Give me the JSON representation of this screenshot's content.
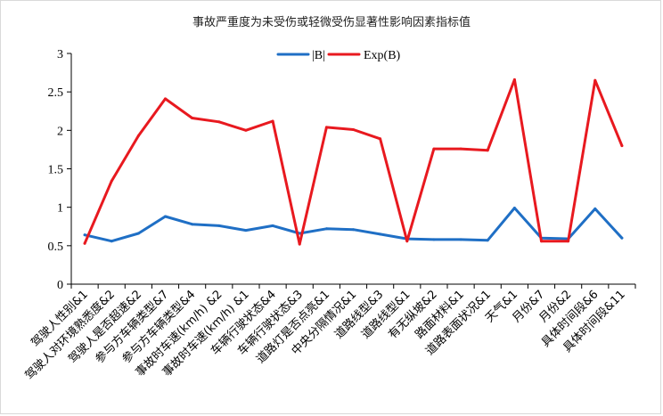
{
  "chart_data": {
    "type": "line",
    "title": "事故严重度为未受伤或轻微受伤显著性影响因素指标值",
    "xlabel": "",
    "ylabel": "",
    "ylim": [
      0,
      3
    ],
    "yticks": [
      "0",
      "0.5",
      "1",
      "1.5",
      "2",
      "2.5",
      "3"
    ],
    "legend_position": "top-center",
    "grid": false,
    "categories": [
      "驾驶人性别&1",
      "驾驶人对环境熟悉度&2",
      "驾驶人是否超速&2",
      "参与方车辆类型&7",
      "参与方车辆类型&4",
      "事故时车速(km/h) &2",
      "事故时车速(km/h) &1",
      "车辆行驶状态&4",
      "车辆行驶状态&3",
      "道路灯是否点亮&1",
      "中央分隔情况&1",
      "道路线型&3",
      "道路线型&1",
      "有无纵坡&2",
      "路面材料&1",
      "道路表面状况&1",
      "天气&1",
      "月份&7",
      "月份&2",
      "具体时间段&6",
      "具体时间段&11"
    ],
    "series": [
      {
        "name": "|B|",
        "color": "#1f6fc5",
        "values": [
          0.64,
          0.56,
          0.66,
          0.88,
          0.78,
          0.76,
          0.7,
          0.76,
          0.66,
          0.72,
          0.71,
          0.65,
          0.59,
          0.58,
          0.58,
          0.57,
          0.99,
          0.6,
          0.59,
          0.98,
          0.6
        ]
      },
      {
        "name": "Exp(B)",
        "color": "#e8191f",
        "values": [
          0.53,
          1.34,
          1.93,
          2.41,
          2.16,
          2.11,
          2.0,
          2.12,
          0.52,
          2.04,
          2.01,
          1.89,
          0.56,
          1.76,
          1.76,
          1.74,
          2.66,
          0.56,
          0.56,
          2.65,
          1.8
        ]
      }
    ]
  }
}
